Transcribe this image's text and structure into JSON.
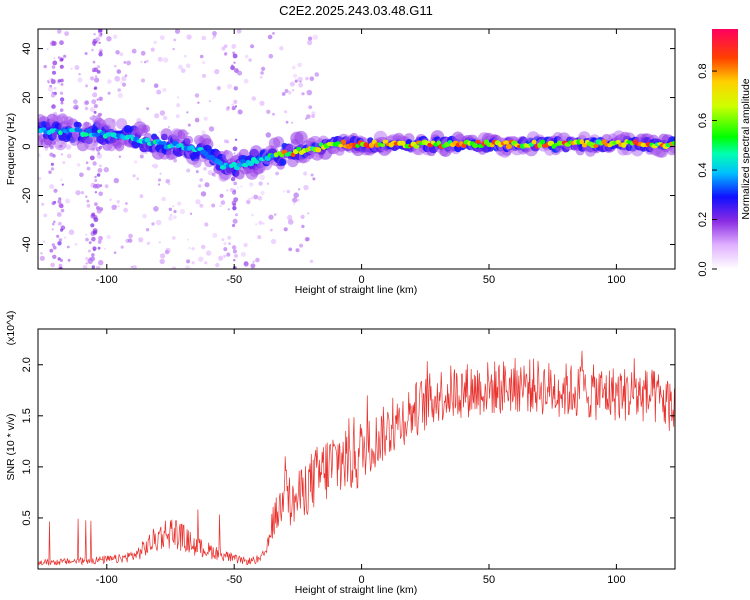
{
  "chart_data": [
    {
      "type": "heatmap",
      "title": "C2E2.2025.243.03.48.G11",
      "xlabel": "Height of straight line (km)",
      "ylabel": "Frequency (Hz)",
      "xlim": [
        -127,
        123
      ],
      "ylim": [
        -50,
        48
      ],
      "xticks": [
        -100,
        -50,
        0,
        50,
        100
      ],
      "yticks": [
        -40,
        -20,
        0,
        20,
        40
      ],
      "colorbar": {
        "label": "Normalized spectral amplitude",
        "range": [
          0,
          0.97
        ],
        "ticks": [
          0.0,
          0.2,
          0.4,
          0.6,
          0.8
        ]
      },
      "ridge": {
        "description": "dominant frequency vs height",
        "x": [
          -127,
          -120,
          -110,
          -100,
          -90,
          -80,
          -70,
          -62,
          -57,
          -52,
          -47,
          -40,
          -35,
          -30,
          -25,
          -20,
          -15,
          -10,
          0,
          10,
          20,
          40,
          60,
          80,
          100,
          123
        ],
        "frequency_hz": [
          6,
          6,
          6,
          5,
          4,
          1,
          0,
          -2,
          -6,
          -9,
          -7,
          -5,
          -4,
          -3,
          -2,
          -1,
          0,
          1,
          1,
          1,
          1,
          1,
          1,
          1,
          1,
          1
        ],
        "peak_amplitude": [
          0.45,
          0.5,
          0.5,
          0.48,
          0.45,
          0.5,
          0.55,
          0.5,
          0.45,
          0.45,
          0.45,
          0.5,
          0.6,
          0.95,
          0.8,
          0.75,
          0.8,
          0.95,
          0.95,
          0.95,
          0.9,
          0.9,
          0.9,
          0.9,
          0.9,
          0.9
        ]
      }
    },
    {
      "type": "line",
      "xlabel": "Height of straight line (km)",
      "ylabel": "SNR (10 * v/v)",
      "multiplier": "(x10^4)",
      "xlim": [
        -127,
        123
      ],
      "ylim": [
        0,
        2.35
      ],
      "xticks": [
        -100,
        -50,
        0,
        50,
        100
      ],
      "yticks": [
        0.5,
        1.0,
        1.5,
        2.0
      ],
      "color": "#e8302c",
      "series": [
        {
          "name": "SNR",
          "x": [
            -127,
            -115,
            -105,
            -95,
            -88,
            -82,
            -78,
            -74,
            -70,
            -65,
            -60,
            -55,
            -50,
            -45,
            -40,
            -37,
            -35,
            -33,
            -31,
            -30,
            -28,
            -25,
            -20,
            -15,
            -10,
            -5,
            0,
            5,
            10,
            15,
            20,
            25,
            30,
            35,
            40,
            45,
            50,
            55,
            60,
            65,
            70,
            75,
            80,
            85,
            90,
            95,
            100,
            105,
            110,
            115,
            120,
            123
          ],
          "values": [
            0.05,
            0.06,
            0.07,
            0.08,
            0.12,
            0.22,
            0.28,
            0.3,
            0.25,
            0.18,
            0.15,
            0.12,
            0.08,
            0.06,
            0.08,
            0.2,
            0.45,
            0.55,
            0.65,
            1.25,
            0.6,
            0.7,
            0.85,
            0.95,
            1.05,
            1.1,
            1.15,
            1.25,
            1.35,
            1.45,
            1.55,
            1.62,
            1.7,
            1.73,
            1.75,
            1.76,
            1.77,
            1.78,
            1.8,
            1.8,
            1.78,
            1.76,
            1.75,
            1.74,
            1.73,
            1.72,
            1.72,
            1.71,
            1.7,
            1.68,
            1.62,
            1.58
          ]
        }
      ]
    }
  ]
}
